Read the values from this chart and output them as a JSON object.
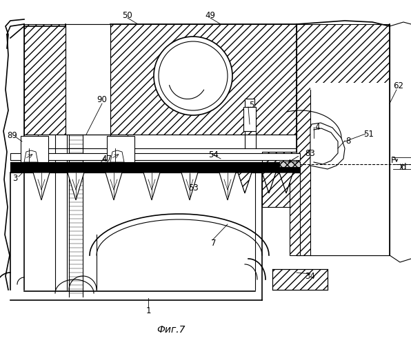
{
  "title": "Фиг.7",
  "bg": "#ffffff",
  "lc": "#000000",
  "fig_width": 5.96,
  "fig_height": 5.0,
  "dpi": 100
}
